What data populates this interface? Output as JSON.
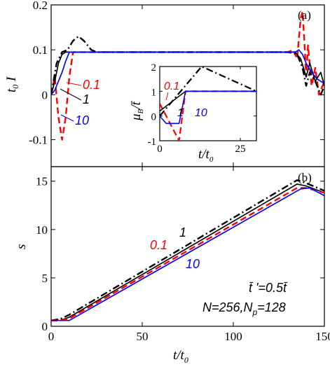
{
  "chart_data": [
    {
      "panel": "(a)",
      "type": "line",
      "ylabel": "t0 I",
      "xlim": [
        0,
        150
      ],
      "ylim": [
        -0.16,
        0.2
      ],
      "yticks": [
        -0.1,
        0,
        0.1,
        0.2
      ],
      "yticklabels": [
        "-0.1",
        "0",
        "0.1",
        "0.2"
      ],
      "xticks": [
        0,
        50,
        100,
        150
      ],
      "annotations": [
        {
          "text": "0.1",
          "color": "#ff0000"
        },
        {
          "text": "1",
          "color": "#000000"
        },
        {
          "text": "10",
          "color": "#0000ff"
        }
      ],
      "series": [
        {
          "color": "#ff0000",
          "style": "dash",
          "x": [
            0,
            2,
            4,
            6,
            8,
            10,
            12,
            20,
            60,
            100,
            130,
            133,
            135,
            137,
            138,
            139,
            140,
            141,
            143,
            145,
            147,
            150
          ],
          "y": [
            0,
            0.04,
            -0.05,
            -0.1,
            -0.05,
            0.04,
            0.095,
            0.095,
            0.095,
            0.095,
            0.095,
            0.1,
            0.08,
            0.17,
            0.185,
            0.12,
            0.04,
            0.11,
            0.02,
            0.06,
            0.0,
            0.03
          ]
        },
        {
          "color": "#000000",
          "style": "dashdot",
          "x": [
            0,
            3,
            6,
            9,
            12,
            15,
            18,
            22,
            25,
            30,
            60,
            100,
            130,
            135,
            138,
            140,
            142,
            145,
            148,
            150
          ],
          "y": [
            0,
            0.07,
            0.095,
            0.1,
            0.12,
            0.13,
            0.12,
            0.1,
            0.095,
            0.095,
            0.095,
            0.095,
            0.095,
            0.09,
            0.06,
            0.02,
            0.05,
            0.03,
            0.0,
            0.02
          ]
        },
        {
          "color": "#000000",
          "style": "solid",
          "x": [
            0,
            2,
            4,
            6,
            8,
            10,
            20,
            60,
            100,
            130,
            134,
            137,
            140,
            142,
            145,
            148,
            150
          ],
          "y": [
            0,
            0.03,
            0.07,
            0.09,
            0.095,
            0.095,
            0.095,
            0.095,
            0.095,
            0.095,
            0.095,
            0.08,
            0.04,
            0.07,
            0.03,
            0.05,
            0.02
          ]
        },
        {
          "color": "#0000ff",
          "style": "solid",
          "x": [
            0,
            2,
            4,
            6,
            8,
            10,
            20,
            60,
            100,
            130,
            134,
            136,
            138,
            140,
            143,
            146,
            150
          ],
          "y": [
            0,
            0.01,
            0.03,
            0.05,
            0.075,
            0.095,
            0.095,
            0.095,
            0.095,
            0.095,
            0.095,
            0.1,
            0.09,
            0.07,
            0.05,
            0.035,
            0.025
          ]
        }
      ]
    },
    {
      "panel": "inset",
      "type": "line",
      "ylabel": "μB/t̄",
      "xlabel": "t/t0",
      "xlim": [
        0,
        30
      ],
      "ylim": [
        -1,
        2
      ],
      "yticks": [
        -1,
        0,
        1,
        2
      ],
      "xticks": [
        0,
        25
      ],
      "annotations": [
        {
          "text": "0.1",
          "color": "#ff0000"
        },
        {
          "text": "1",
          "color": "#000000"
        },
        {
          "text": "10",
          "color": "#0000ff"
        }
      ],
      "series": [
        {
          "color": "#ff0000",
          "style": "dash",
          "x": [
            0,
            6,
            8,
            30
          ],
          "y": [
            0.5,
            -1,
            1,
            1
          ]
        },
        {
          "color": "#000000",
          "style": "dashdot",
          "x": [
            0,
            13,
            30
          ],
          "y": [
            0,
            2,
            1
          ]
        },
        {
          "color": "#000000",
          "style": "solid",
          "x": [
            0,
            8,
            30
          ],
          "y": [
            0.2,
            1,
            1
          ]
        },
        {
          "color": "#0000ff",
          "style": "solid",
          "x": [
            0,
            2,
            6,
            8,
            30
          ],
          "y": [
            0,
            -0.3,
            -0.3,
            1,
            1
          ]
        }
      ]
    },
    {
      "panel": "(b)",
      "type": "line",
      "xlabel": "t/t0",
      "ylabel": "s",
      "xlim": [
        0,
        150
      ],
      "ylim": [
        0,
        16.5
      ],
      "yticks": [
        0,
        5,
        10,
        15
      ],
      "xticks": [
        0,
        50,
        100,
        150
      ],
      "annotations": [
        {
          "text": "1",
          "color": "#000000"
        },
        {
          "text": "0.1",
          "color": "#ff0000"
        },
        {
          "text": "10",
          "color": "#0000ff"
        },
        {
          "text": "t̄ '=0.5t̄",
          "color": "#000000"
        },
        {
          "text": "N=256,Np=128",
          "color": "#000000"
        }
      ],
      "series": [
        {
          "color": "#000000",
          "style": "dashdot",
          "x": [
            0,
            5,
            10,
            135,
            140,
            150
          ],
          "y": [
            0.6,
            0.75,
            1.2,
            15.1,
            14.8,
            14.0
          ]
        },
        {
          "color": "#000000",
          "style": "solid",
          "x": [
            0,
            5,
            10,
            135,
            140,
            150
          ],
          "y": [
            0.6,
            0.6,
            0.95,
            14.7,
            14.5,
            13.8
          ]
        },
        {
          "color": "#ff0000",
          "style": "dash",
          "x": [
            0,
            5,
            10,
            135,
            140,
            150
          ],
          "y": [
            0.6,
            0.6,
            0.8,
            14.3,
            14.3,
            13.8
          ]
        },
        {
          "color": "#0000ff",
          "style": "solid",
          "x": [
            0,
            5,
            10,
            137,
            142,
            150
          ],
          "y": [
            0.6,
            0.6,
            0.6,
            14.2,
            14.3,
            13.5
          ]
        }
      ]
    }
  ],
  "labels": {
    "panel_a": "(a)",
    "panel_b": "(b)",
    "a_ylabel_main": "t",
    "a_ylabel_sub": "0",
    "a_ylabel_tail": " I",
    "b_ylabel": "s",
    "xlabel_main": "t/t",
    "xlabel_sub": "0",
    "inset_xlabel_main": "t/t",
    "inset_xlabel_sub": "0",
    "a_ann_01": "0.1",
    "a_ann_1": "1",
    "a_ann_10": "10",
    "inset_ann_01": "0.1",
    "inset_ann_1": "1",
    "inset_ann_10": "10",
    "b_ann_1": "1",
    "b_ann_01": "0.1",
    "b_ann_10": "10",
    "b_param_main": "t̄ '=0.5t̄",
    "b_param_N_main": "N=256,N",
    "b_param_N_sub": "p",
    "b_param_N_tail": "=128",
    "inset_ylabel_mu": "μ",
    "inset_ylabel_sub": "B",
    "inset_ylabel_tail": "/t̄"
  }
}
